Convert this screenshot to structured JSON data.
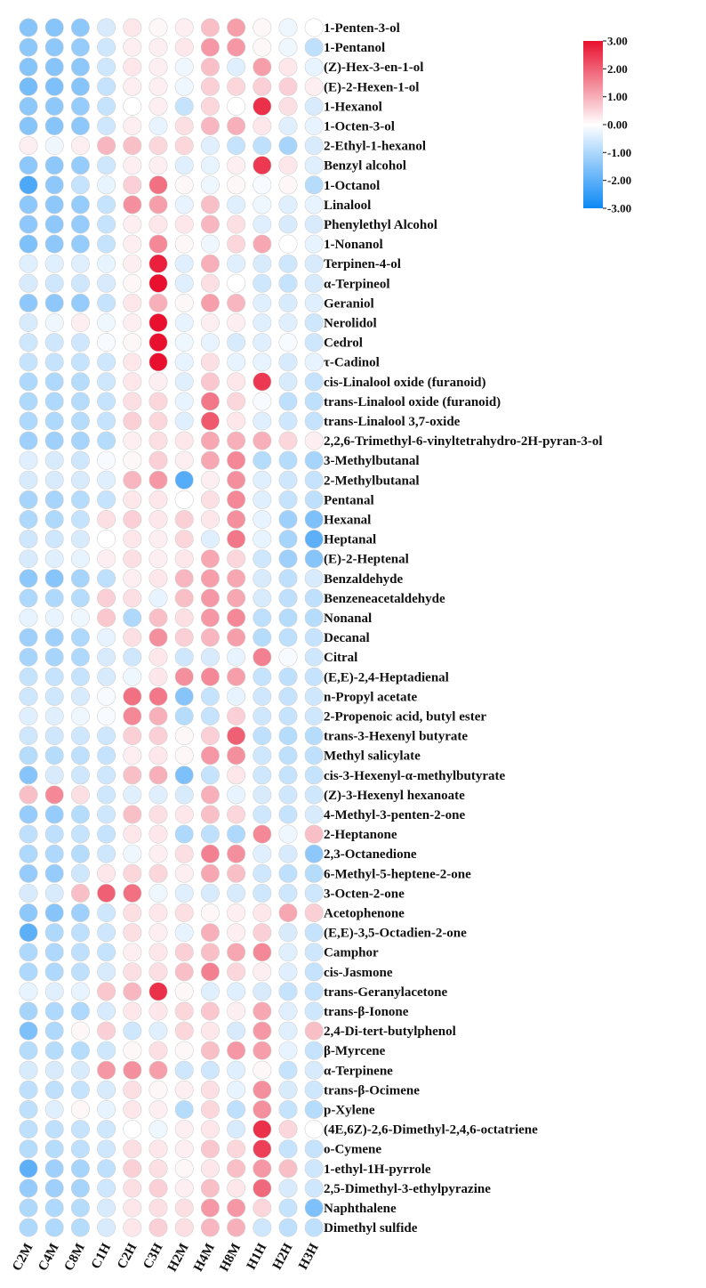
{
  "chart_data": {
    "type": "heatmap",
    "title": "",
    "xlabel": "",
    "ylabel": "",
    "columns": [
      "C2M",
      "C4M",
      "C8M",
      "C1H",
      "C2H",
      "C3H",
      "H2M",
      "H4M",
      "H8M",
      "H1H",
      "H2H",
      "H3H"
    ],
    "rows": [
      "1-Penten-3-ol",
      "1-Pentanol",
      "(Z)-Hex-3-en-1-ol",
      "(E)-2-Hexen-1-ol",
      "1-Hexanol",
      "1-Octen-3-ol",
      "2-Ethyl-1-hexanol",
      "Benzyl alcohol",
      "1-Octanol",
      "Linalool",
      "Phenylethyl Alcohol",
      "1-Nonanol",
      "Terpinen-4-ol",
      "α-Terpineol",
      "Geraniol",
      "Nerolidol",
      "Cedrol",
      "τ-Cadinol",
      "cis-Linalool oxide (furanoid)",
      "trans-Linalool oxide (furanoid)",
      "trans-Linalool 3,7-oxide",
      "2,2,6-Trimethyl-6-vinyltetrahydro-2H-pyran-3-ol",
      "3-Methylbutanal",
      "2-Methylbutanal",
      "Pentanal",
      "Hexanal",
      "Heptanal",
      "(E)-2-Heptenal",
      "Benzaldehyde",
      "Benzeneacetaldehyde",
      "Nonanal",
      "Decanal",
      "Citral",
      "(E,E)-2,4-Heptadienal",
      "n-Propyl acetate",
      "2-Propenoic acid, butyl ester",
      "trans-3-Hexenyl butyrate",
      "Methyl salicylate",
      "cis-3-Hexenyl-α-methylbutyrate",
      "(Z)-3-Hexenyl hexanoate",
      "4-Methyl-3-penten-2-one",
      "2-Heptanone",
      "2,3-Octanedione",
      "6-Methyl-5-heptene-2-one",
      "3-Octen-2-one",
      "Acetophenone",
      "(E,E)-3,5-Octadien-2-one",
      "Camphor",
      "cis-Jasmone",
      "trans-Geranylacetone",
      "trans-β-Ionone",
      "2,4-Di-tert-butylphenol",
      "β-Myrcene",
      "α-Terpinene",
      "trans-β-Ocimene",
      "p-Xylene",
      "(4E,6Z)-2,6-Dimethyl-2,4,6-octatriene",
      "o-Cymene",
      "1-ethyl-1H-pyrrole",
      "2,5-Dimethyl-3-ethylpyrazine",
      "Naphthalene",
      "Dimethyl sulfide"
    ],
    "values": [
      [
        -1.5,
        -1.5,
        -1.4,
        -0.5,
        0.3,
        0.1,
        0.2,
        0.8,
        1.2,
        0.1,
        -0.2,
        0.0
      ],
      [
        -1.4,
        -1.4,
        -1.3,
        -0.6,
        0.2,
        0.2,
        0.3,
        1.3,
        1.3,
        0.1,
        -0.2,
        -0.8
      ],
      [
        -1.5,
        -1.5,
        -1.4,
        -0.6,
        0.3,
        0.2,
        -0.2,
        0.8,
        -0.4,
        1.2,
        0.3,
        -0.3
      ],
      [
        -1.7,
        -1.6,
        -1.5,
        -0.7,
        0.2,
        0.2,
        -0.2,
        0.6,
        0.5,
        0.6,
        0.6,
        0.2
      ],
      [
        -1.4,
        -1.4,
        -1.3,
        -0.7,
        0.0,
        0.2,
        -0.7,
        0.5,
        0.0,
        2.6,
        0.4,
        -0.5
      ],
      [
        -1.5,
        -1.5,
        -1.4,
        -0.6,
        0.2,
        -0.3,
        0.4,
        0.9,
        1.0,
        0.3,
        -0.4,
        -0.3
      ],
      [
        0.2,
        -0.2,
        0.2,
        0.9,
        0.8,
        0.5,
        0.5,
        -0.4,
        -0.7,
        -0.8,
        -1.1,
        -0.5
      ],
      [
        -1.4,
        -1.4,
        -1.3,
        -0.6,
        0.2,
        0.2,
        -0.4,
        -0.3,
        0.2,
        2.5,
        0.3,
        -0.4
      ],
      [
        -2.2,
        -1.4,
        -0.7,
        -0.3,
        0.6,
        1.8,
        0.1,
        -0.2,
        0.1,
        -0.1,
        0.1,
        -0.9
      ],
      [
        -1.4,
        -1.4,
        -1.3,
        -0.7,
        1.4,
        1.2,
        -0.3,
        0.8,
        -0.4,
        -0.2,
        -0.4,
        -0.3
      ],
      [
        -1.4,
        -1.4,
        -1.3,
        -0.7,
        0.2,
        0.3,
        0.3,
        0.9,
        0.4,
        -0.4,
        -0.5,
        -0.5
      ],
      [
        -1.6,
        -1.4,
        -1.3,
        -0.7,
        0.2,
        1.5,
        0.1,
        -0.2,
        0.5,
        1.1,
        0.0,
        -0.3
      ],
      [
        -0.4,
        -0.4,
        -0.4,
        -0.3,
        0.2,
        2.8,
        -0.4,
        1.0,
        -0.4,
        -0.5,
        -0.6,
        -0.5
      ],
      [
        -0.5,
        -0.6,
        -0.6,
        -0.5,
        0.1,
        3.0,
        -0.4,
        0.4,
        0.0,
        -0.6,
        -0.7,
        -0.5
      ],
      [
        -1.4,
        -1.4,
        -1.3,
        -0.7,
        0.3,
        1.0,
        0.1,
        1.2,
        0.9,
        -0.4,
        -0.5,
        -0.4
      ],
      [
        -0.5,
        -0.2,
        0.2,
        -0.2,
        0.2,
        3.0,
        -0.3,
        0.2,
        0.2,
        -0.4,
        -0.4,
        -0.6
      ],
      [
        -0.6,
        -0.6,
        -0.6,
        -0.1,
        0.1,
        3.0,
        -0.2,
        -0.3,
        -0.5,
        -0.4,
        -0.1,
        -0.6
      ],
      [
        -0.7,
        -0.7,
        -0.7,
        -0.6,
        0.3,
        3.0,
        -0.3,
        0.4,
        -0.3,
        -0.3,
        -0.5,
        -0.3
      ],
      [
        -1.0,
        -1.0,
        -0.9,
        -0.6,
        0.3,
        0.2,
        -0.4,
        0.7,
        0.3,
        2.5,
        -0.5,
        -0.7
      ],
      [
        -1.0,
        -1.0,
        -0.9,
        -0.7,
        0.4,
        0.5,
        -0.3,
        1.7,
        0.5,
        -0.1,
        -0.8,
        -0.8
      ],
      [
        -1.0,
        -1.0,
        -0.9,
        -0.7,
        0.6,
        0.5,
        -0.4,
        2.1,
        0.3,
        -0.4,
        -0.6,
        -0.7
      ],
      [
        -1.2,
        -1.2,
        -1.1,
        -0.9,
        0.2,
        0.4,
        0.3,
        1.1,
        1.0,
        1.0,
        0.5,
        0.2
      ],
      [
        -0.4,
        -0.5,
        -0.6,
        -0.1,
        0.1,
        0.6,
        0.2,
        1.1,
        1.5,
        -0.9,
        -0.9,
        -1.1
      ],
      [
        -0.5,
        -0.5,
        -0.5,
        -0.4,
        0.9,
        1.3,
        -2.1,
        0.2,
        1.4,
        -0.4,
        -0.6,
        -0.7
      ],
      [
        -1.1,
        -1.1,
        -0.9,
        -0.7,
        0.3,
        0.3,
        0.0,
        0.4,
        1.5,
        -0.4,
        -0.7,
        -0.8
      ],
      [
        -1.0,
        -1.0,
        -0.7,
        0.4,
        0.6,
        0.3,
        0.6,
        0.3,
        1.4,
        -0.3,
        -1.2,
        -1.6
      ],
      [
        -0.6,
        -0.6,
        -0.5,
        0.0,
        0.3,
        0.2,
        0.5,
        -0.4,
        1.7,
        -0.3,
        -1.1,
        -2.0
      ],
      [
        -0.5,
        -0.4,
        -0.3,
        0.2,
        0.4,
        0.2,
        0.3,
        1.1,
        0.5,
        -0.6,
        -1.2,
        -1.5
      ],
      [
        -1.4,
        -1.5,
        -1.1,
        -0.8,
        0.2,
        0.3,
        0.9,
        1.2,
        1.1,
        -0.5,
        -0.8,
        -0.5
      ],
      [
        -1.0,
        -1.0,
        -0.9,
        0.6,
        0.4,
        -0.3,
        0.8,
        1.3,
        1.1,
        -0.5,
        -0.8,
        -0.8
      ],
      [
        -0.3,
        -0.3,
        -0.2,
        0.7,
        -1.0,
        0.8,
        0.4,
        1.3,
        1.5,
        -0.8,
        -0.9,
        -0.9
      ],
      [
        -1.2,
        -1.2,
        -1.0,
        -0.3,
        0.4,
        1.4,
        0.6,
        0.9,
        1.2,
        -0.9,
        -0.8,
        -0.7
      ],
      [
        -1.1,
        -1.1,
        -1.0,
        -0.5,
        -0.6,
        0.3,
        -0.6,
        -0.5,
        -0.3,
        1.6,
        -0.1,
        -0.6
      ],
      [
        -0.7,
        -0.7,
        -0.7,
        -0.5,
        -0.2,
        0.3,
        1.4,
        1.5,
        1.2,
        -0.7,
        -0.8,
        -0.7
      ],
      [
        -0.6,
        -0.6,
        -0.5,
        -0.1,
        1.8,
        1.7,
        -1.5,
        -0.7,
        -0.3,
        -0.6,
        -0.7,
        -0.6
      ],
      [
        -0.4,
        -0.4,
        -0.2,
        -0.1,
        1.5,
        1.0,
        -0.9,
        -0.7,
        0.6,
        -0.6,
        -0.7,
        -0.6
      ],
      [
        -0.6,
        -0.6,
        -0.6,
        -0.6,
        0.6,
        0.6,
        0.1,
        0.6,
        2.0,
        -0.8,
        -0.9,
        -0.9
      ],
      [
        -0.9,
        -0.9,
        -0.8,
        -0.7,
        0.2,
        0.3,
        0.1,
        1.3,
        1.4,
        -0.6,
        -0.8,
        -0.8
      ],
      [
        -1.5,
        -0.5,
        -0.6,
        -0.6,
        0.8,
        1.0,
        -1.6,
        -0.7,
        0.3,
        -0.6,
        -0.7,
        -0.7
      ],
      [
        0.8,
        1.5,
        0.4,
        -0.6,
        -0.4,
        -0.4,
        -0.5,
        1.0,
        -0.3,
        -0.5,
        -0.6,
        -0.6
      ],
      [
        -1.3,
        -1.3,
        -0.9,
        -0.6,
        0.8,
        0.4,
        0.3,
        0.8,
        0.5,
        -0.6,
        -0.7,
        -0.5
      ],
      [
        -0.8,
        -0.8,
        -0.7,
        -0.7,
        0.3,
        0.3,
        -1.0,
        -0.8,
        -1.0,
        1.5,
        -0.2,
        0.8
      ],
      [
        -1.0,
        -1.0,
        -0.9,
        -0.6,
        -0.2,
        0.2,
        0.4,
        1.6,
        1.4,
        -0.4,
        -0.5,
        -1.4
      ],
      [
        -1.3,
        -1.3,
        -0.6,
        0.3,
        0.5,
        0.5,
        0.2,
        1.1,
        0.8,
        -0.6,
        -0.8,
        -0.9
      ],
      [
        -0.5,
        -0.5,
        0.8,
        2.0,
        1.8,
        -0.2,
        -0.4,
        -0.5,
        -0.5,
        -0.6,
        -0.6,
        -0.6
      ],
      [
        -1.4,
        -1.5,
        -1.2,
        -0.6,
        0.4,
        0.3,
        0.4,
        0.1,
        0.2,
        0.3,
        1.1,
        0.6
      ],
      [
        -2.0,
        -1.0,
        -0.8,
        -0.6,
        0.4,
        0.2,
        -0.3,
        1.0,
        0.2,
        0.6,
        -0.5,
        -0.7
      ],
      [
        -1.0,
        -1.0,
        -0.8,
        -0.7,
        0.2,
        0.3,
        0.6,
        0.8,
        1.1,
        1.5,
        -0.4,
        -0.6
      ],
      [
        -1.0,
        -1.0,
        -0.8,
        -0.5,
        0.4,
        0.4,
        0.8,
        1.6,
        0.5,
        0.2,
        -0.4,
        -0.7
      ],
      [
        -0.3,
        -0.4,
        -0.3,
        0.7,
        0.9,
        2.6,
        0.1,
        -0.4,
        -0.4,
        -0.5,
        -0.7,
        -0.7
      ],
      [
        -1.1,
        -1.0,
        -1.0,
        -0.5,
        0.3,
        0.3,
        0.5,
        0.7,
        0.2,
        1.1,
        -0.4,
        -0.6
      ],
      [
        -1.6,
        -1.0,
        0.1,
        0.6,
        -0.6,
        -0.4,
        0.5,
        0.3,
        -0.5,
        1.3,
        -0.4,
        0.8
      ],
      [
        -0.9,
        -0.9,
        -0.9,
        -0.6,
        0.1,
        0.4,
        0.1,
        0.8,
        1.3,
        1.2,
        -0.3,
        -0.7
      ],
      [
        -0.5,
        -0.5,
        -0.5,
        1.3,
        1.4,
        1.2,
        -0.6,
        -0.6,
        -0.4,
        0.1,
        -0.7,
        -0.5
      ],
      [
        -0.8,
        -0.8,
        -0.7,
        -0.5,
        0.4,
        0.1,
        0.2,
        0.4,
        -0.3,
        1.4,
        -0.5,
        -0.6
      ],
      [
        -0.8,
        -0.4,
        0.1,
        -0.3,
        0.3,
        0.2,
        -0.9,
        0.5,
        -0.8,
        1.4,
        -0.7,
        -0.9
      ],
      [
        -0.8,
        -0.8,
        -0.7,
        -0.6,
        0.0,
        -0.2,
        0.2,
        0.3,
        -0.5,
        2.6,
        0.5,
        0.0
      ],
      [
        -0.9,
        -0.9,
        -0.8,
        -0.6,
        0.4,
        0.3,
        0.2,
        0.7,
        0.5,
        2.4,
        -0.7,
        -0.7
      ],
      [
        -2.0,
        -1.2,
        -1.1,
        -0.8,
        0.6,
        0.4,
        0.1,
        0.3,
        0.8,
        1.3,
        0.8,
        -0.6
      ],
      [
        -1.3,
        -1.2,
        -1.1,
        -0.6,
        0.4,
        0.6,
        0.2,
        0.8,
        0.3,
        1.9,
        -0.5,
        -0.6
      ],
      [
        -1.0,
        -1.0,
        -0.9,
        -0.5,
        0.3,
        0.4,
        0.4,
        1.3,
        1.3,
        0.5,
        -0.7,
        -1.6
      ],
      [
        -1.0,
        -1.0,
        -0.9,
        -0.5,
        0.3,
        0.6,
        0.4,
        0.9,
        1.0,
        -0.6,
        -0.8,
        -0.8
      ]
    ],
    "colorbar": {
      "range": [
        -3.0,
        3.0
      ],
      "tick_labels": [
        "3.00",
        "2.00",
        "1.00",
        "0.00",
        "-1.00",
        "-2.00",
        "-3.00"
      ],
      "colors": {
        "high": "#e8102e",
        "mid": "#ffffff",
        "low": "#0c89f5"
      }
    },
    "grid": false,
    "legend": "top-right colorbar"
  }
}
